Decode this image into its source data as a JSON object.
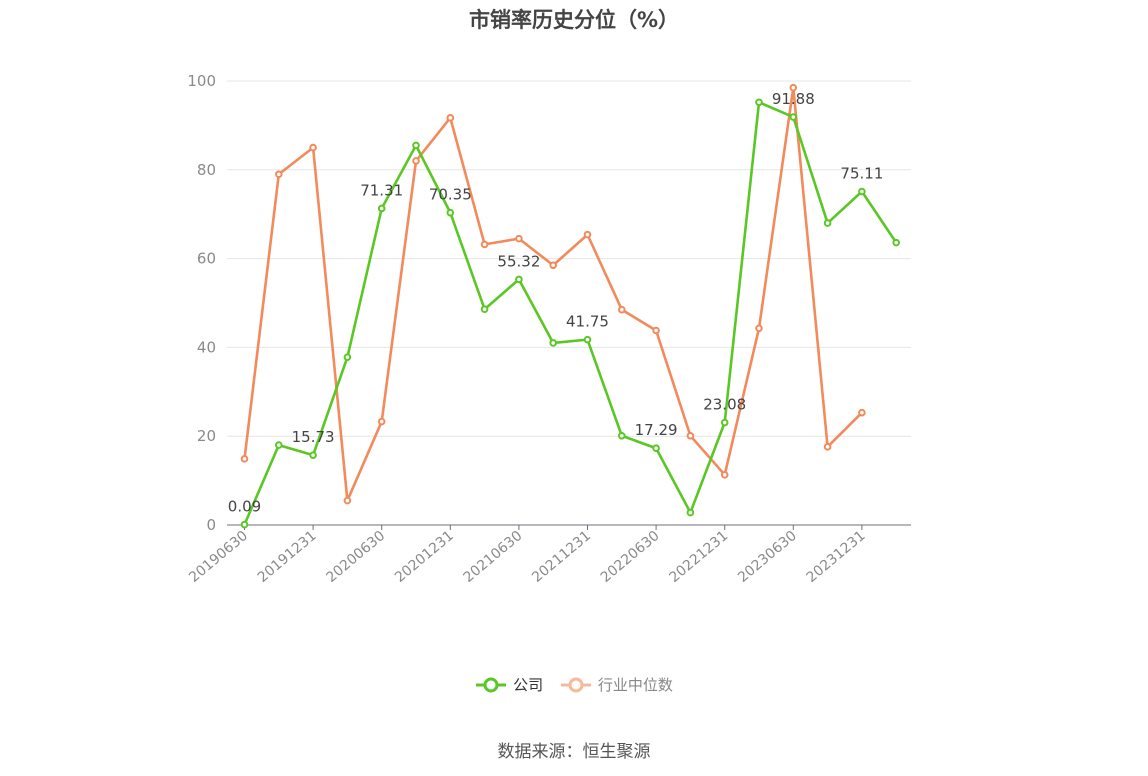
{
  "chart_data": {
    "type": "line",
    "title": "市销率历史分位（%）",
    "x": [
      "20190630",
      "20190930",
      "20191231",
      "20200331",
      "20200630",
      "20200930",
      "20201231",
      "20210331",
      "20210630",
      "20210930",
      "20211231",
      "20220331",
      "20220630",
      "20220930",
      "20221231",
      "20230331",
      "20230630",
      "20230930",
      "20231231",
      "20240331"
    ],
    "x_tick_labels": [
      "20190630",
      "20191231",
      "20200630",
      "20201231",
      "20210630",
      "20211231",
      "20220630",
      "20221231",
      "20230630",
      "20231231"
    ],
    "ylim": [
      0,
      100
    ],
    "y_ticks": [
      0,
      20,
      40,
      60,
      80,
      100
    ],
    "grid": true,
    "legend_position": "bottom",
    "series": [
      {
        "name": "公司",
        "color": "#5ac725",
        "values": [
          0.09,
          18.0,
          15.73,
          37.8,
          71.31,
          85.5,
          70.35,
          48.6,
          55.32,
          41.0,
          41.75,
          20.1,
          17.29,
          2.8,
          23.08,
          95.2,
          91.88,
          68.0,
          75.11,
          63.6
        ],
        "labels": [
          "0.09",
          "",
          "15.73",
          "",
          "71.31",
          "",
          "70.35",
          "",
          "55.32",
          "",
          "41.75",
          "",
          "17.29",
          "",
          "23.08",
          "",
          "91.88",
          "",
          "75.11",
          ""
        ]
      },
      {
        "name": "行业中位数",
        "color": "#f28a5b",
        "values": [
          14.9,
          79.0,
          85.0,
          5.5,
          23.3,
          82.0,
          91.7,
          63.2,
          64.5,
          58.5,
          65.4,
          48.5,
          43.8,
          20.1,
          11.3,
          44.3,
          98.5,
          17.6,
          25.3,
          null
        ]
      }
    ]
  },
  "legend": {
    "company": "公司",
    "industry": "行业中位数"
  },
  "source": "数据来源：恒生聚源"
}
